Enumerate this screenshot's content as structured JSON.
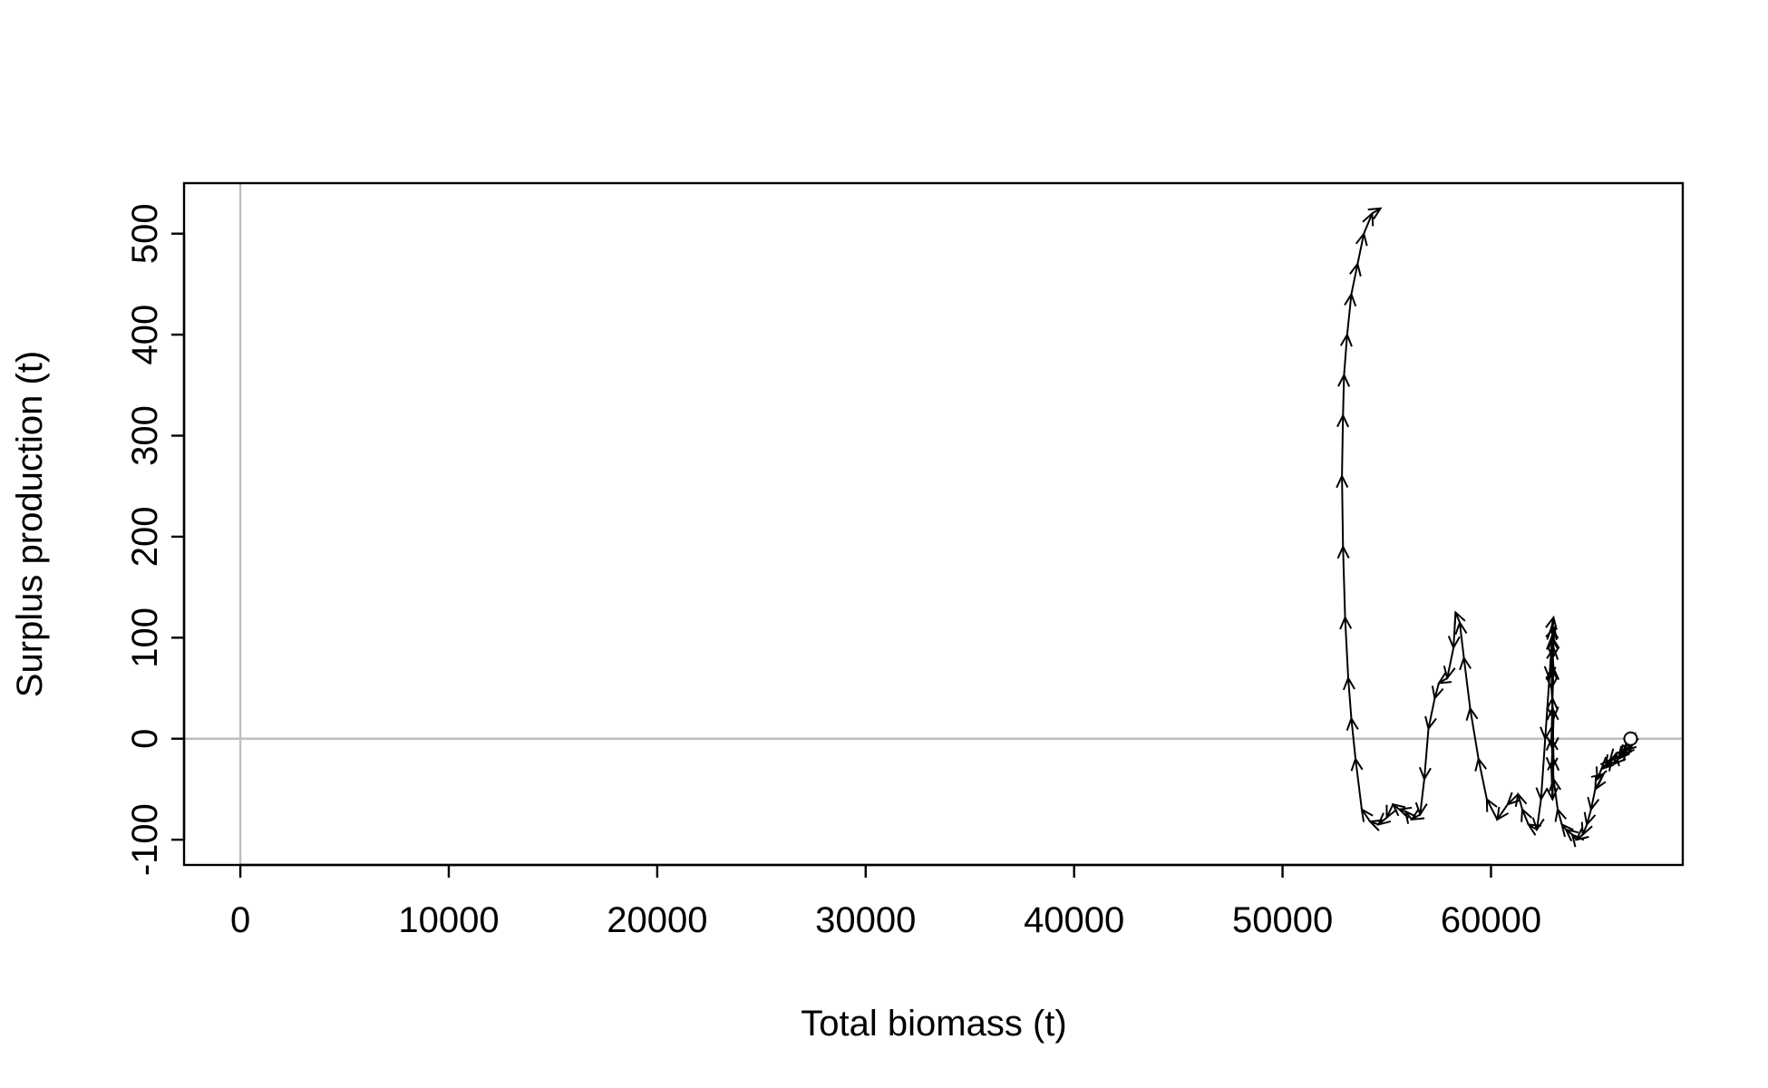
{
  "chart_data": {
    "type": "line",
    "title": "",
    "xlabel": "Total biomass (t)",
    "ylabel": "Surplus production (t)",
    "xlim": [
      -2700,
      69200
    ],
    "ylim": [
      -125,
      550
    ],
    "x_ticks": [
      0,
      10000,
      20000,
      30000,
      40000,
      50000,
      60000
    ],
    "x_tick_labels": [
      "0",
      "10000",
      "20000",
      "30000",
      "40000",
      "50000",
      "60000"
    ],
    "y_ticks": [
      -100,
      0,
      100,
      200,
      300,
      400,
      500
    ],
    "y_tick_labels": [
      "-100",
      "0",
      "100",
      "200",
      "300",
      "400",
      "500"
    ],
    "reference_lines": {
      "x": 0,
      "y": 0,
      "color": "#bebebe"
    },
    "grid": false,
    "legend": "none",
    "colors": {
      "line": "#000000",
      "reference": "#bebebe",
      "start_marker_fill": "#ffffff"
    },
    "series": [
      {
        "x": [
          66700,
          66900,
          66600,
          66400,
          66800,
          66300,
          66100,
          66500,
          66200,
          65900,
          66000,
          65700,
          65500,
          65800,
          65300,
          65100,
          65400,
          65000,
          64800,
          64600,
          64400,
          64100,
          63900,
          63600,
          63400,
          63200,
          63000,
          62900,
          62950,
          63000,
          62900,
          63050,
          62950,
          62900,
          63000,
          62950,
          62900,
          62950,
          63000,
          62950,
          62900,
          63000,
          62950,
          62900,
          63000,
          62800,
          62600,
          62400,
          62200,
          61800,
          61500,
          61300,
          60800,
          60300,
          59800,
          59400,
          59000,
          58700,
          58500,
          58300,
          58200,
          57900,
          57500,
          57300,
          57000,
          56800,
          56600,
          56200,
          55900,
          55600,
          55300,
          55000,
          54600,
          54200,
          53800,
          53500,
          53300,
          53150,
          53000,
          52900,
          52850,
          52900,
          52950,
          53100,
          53300,
          53600,
          53900,
          54300,
          54700
        ],
        "y": [
          0,
          5,
          -8,
          -12,
          -5,
          -15,
          -20,
          -10,
          -18,
          -25,
          -15,
          -22,
          -28,
          -20,
          -30,
          -40,
          -35,
          -50,
          -70,
          -85,
          -95,
          -100,
          -95,
          -90,
          -85,
          -70,
          -40,
          0,
          40,
          70,
          100,
          110,
          80,
          50,
          20,
          -10,
          -30,
          -60,
          -20,
          30,
          70,
          90,
          100,
          110,
          120,
          60,
          0,
          -60,
          -90,
          -85,
          -70,
          -55,
          -65,
          -80,
          -60,
          -20,
          30,
          80,
          115,
          125,
          90,
          60,
          55,
          40,
          10,
          -40,
          -75,
          -80,
          -72,
          -70,
          -65,
          -78,
          -85,
          -82,
          -70,
          -20,
          20,
          60,
          120,
          190,
          260,
          320,
          360,
          400,
          440,
          470,
          500,
          520,
          525
        ]
      }
    ]
  }
}
